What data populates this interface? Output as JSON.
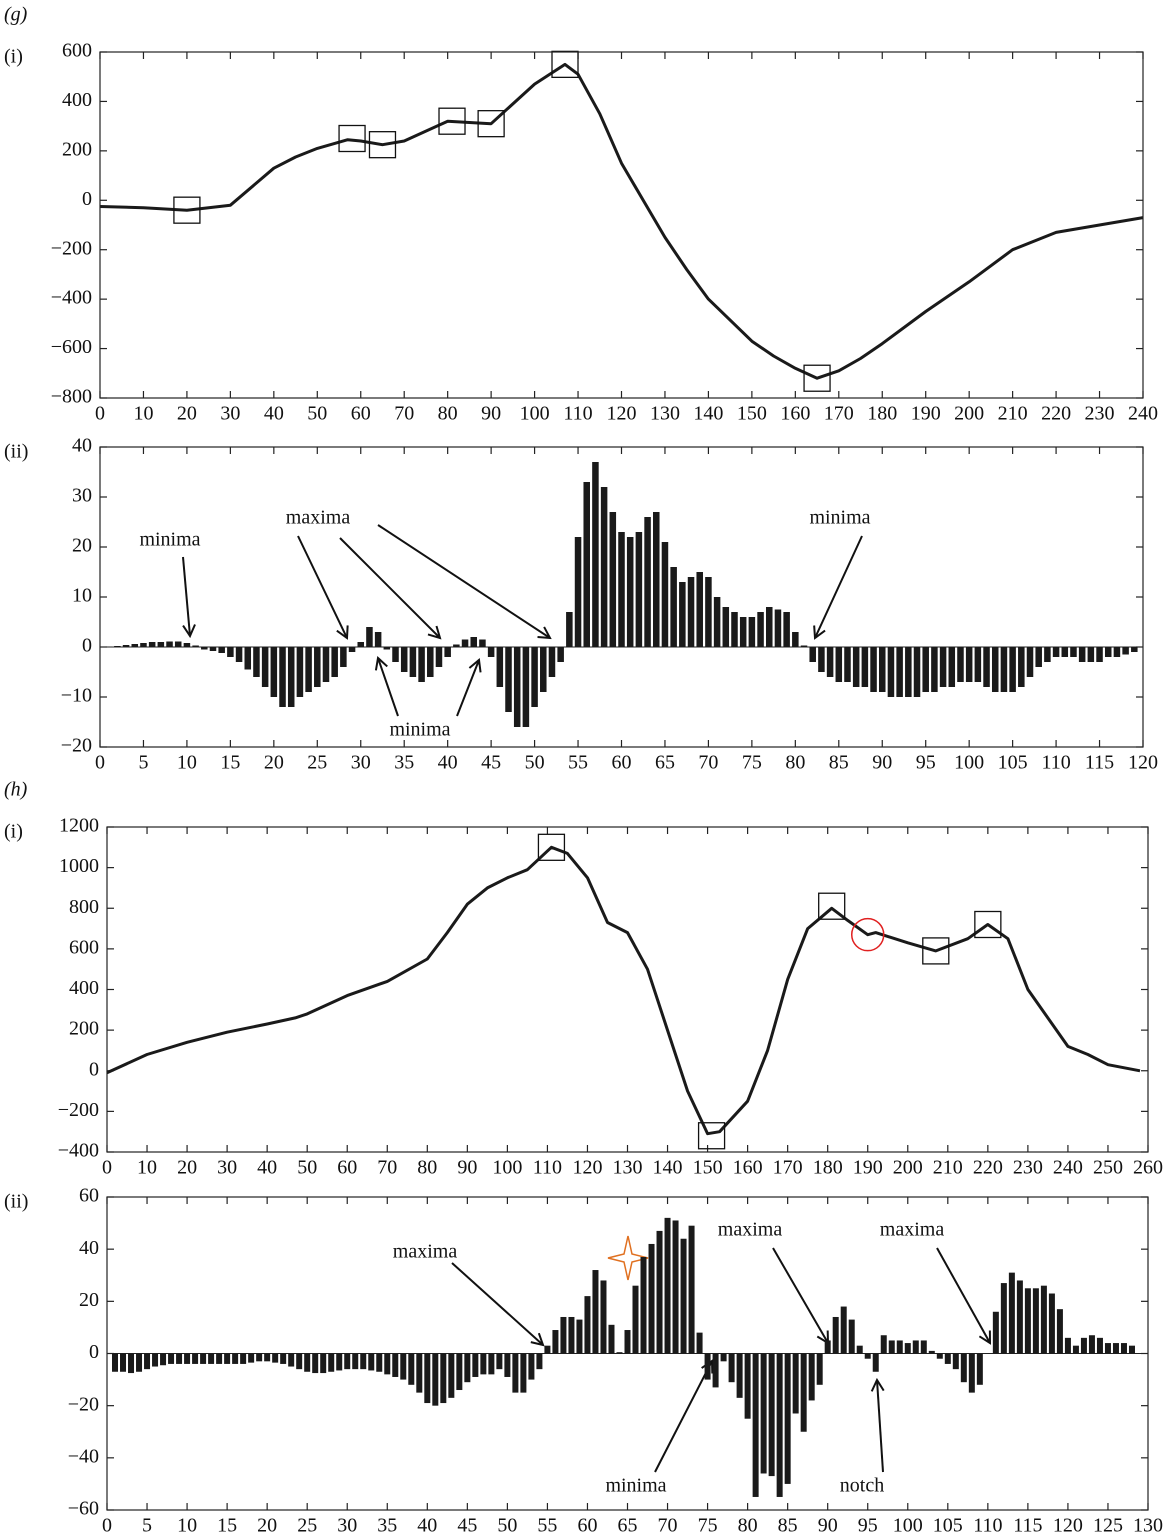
{
  "chart_data": [
    {
      "type": "line",
      "group_label": "(g)",
      "panel_label": "(i)",
      "color": "#1a1a1a",
      "x": [
        0,
        10,
        20,
        30,
        40,
        45,
        50,
        57,
        60,
        65,
        70,
        80,
        90,
        100,
        107,
        110,
        115,
        120,
        125,
        130,
        135,
        140,
        150,
        155,
        160,
        165,
        170,
        175,
        180,
        190,
        200,
        210,
        220,
        230,
        240
      ],
      "values": [
        -25,
        -30,
        -40,
        -20,
        130,
        175,
        210,
        245,
        240,
        225,
        240,
        320,
        310,
        470,
        550,
        510,
        350,
        150,
        0,
        -150,
        -280,
        -400,
        -570,
        -630,
        -680,
        -720,
        -690,
        -640,
        -580,
        -450,
        -330,
        -200,
        -130,
        -100,
        -70
      ],
      "xlim": [
        0,
        240
      ],
      "xticks": [
        0,
        10,
        20,
        30,
        40,
        50,
        60,
        70,
        80,
        90,
        100,
        110,
        120,
        130,
        140,
        150,
        160,
        170,
        180,
        190,
        200,
        210,
        220,
        230,
        240
      ],
      "ylim": [
        -800,
        600
      ],
      "yticks": [
        {
          "value": -800,
          "label": "−800"
        },
        {
          "value": -600,
          "label": "−600"
        },
        {
          "value": -400,
          "label": "−400"
        },
        {
          "value": -200,
          "label": "−200"
        },
        0,
        200,
        400,
        600
      ],
      "boxes": {
        "x": [
          20,
          58,
          65,
          81,
          90,
          107,
          165
        ],
        "y": [
          -40,
          250,
          225,
          320,
          310,
          550,
          -720
        ]
      }
    },
    {
      "type": "bar",
      "panel_label": "(ii)",
      "color": "#1a1a1a",
      "x": [
        1,
        2,
        3,
        4,
        5,
        6,
        7,
        8,
        9,
        10,
        11,
        12,
        13,
        14,
        15,
        16,
        17,
        18,
        19,
        20,
        21,
        22,
        23,
        24,
        25,
        26,
        27,
        28,
        29,
        30,
        31,
        32,
        33,
        34,
        35,
        36,
        37,
        38,
        39,
        40,
        41,
        42,
        43,
        44,
        45,
        46,
        47,
        48,
        49,
        50,
        51,
        52,
        53,
        54,
        55,
        56,
        57,
        58,
        59,
        60,
        61,
        62,
        63,
        64,
        65,
        66,
        67,
        68,
        69,
        70,
        71,
        72,
        73,
        74,
        75,
        76,
        77,
        78,
        79,
        80,
        81,
        82,
        83,
        84,
        85,
        86,
        87,
        88,
        89,
        90,
        91,
        92,
        93,
        94,
        95,
        96,
        97,
        98,
        99,
        100,
        101,
        102,
        103,
        104,
        105,
        106,
        107,
        108,
        109,
        110,
        111,
        112,
        113,
        114,
        115,
        116,
        117,
        118,
        119
      ],
      "values": [
        0.1,
        0.2,
        0.4,
        0.6,
        0.8,
        1,
        1,
        1.1,
        1.1,
        0.8,
        0.3,
        -0.5,
        -0.8,
        -1.2,
        -2,
        -3,
        -4.5,
        -6,
        -8,
        -10,
        -12,
        -12,
        -10,
        -9,
        -8,
        -7,
        -6,
        -4,
        -1,
        1,
        4,
        3,
        -0.5,
        -3,
        -5,
        -6,
        -7,
        -6,
        -4,
        -2,
        0.5,
        1.5,
        2,
        1.5,
        -2,
        -8,
        -13,
        -16,
        -16,
        -12,
        -9,
        -6,
        -3,
        7,
        22,
        33,
        37,
        32,
        27,
        23,
        22,
        23,
        26,
        27,
        21,
        16,
        13,
        14,
        15,
        14,
        10,
        8,
        7,
        6,
        6,
        7,
        8,
        7.5,
        7,
        3,
        0.3,
        -3,
        -5,
        -6,
        -7,
        -7,
        -8,
        -8,
        -9,
        -9,
        -10,
        -10,
        -10,
        -10,
        -9,
        -9,
        -8,
        -8,
        -7,
        -7,
        -7,
        -8,
        -9,
        -9,
        -9,
        -8,
        -6,
        -4,
        -3,
        -2,
        -2,
        -2,
        -3,
        -3,
        -3,
        -2,
        -2,
        -1.5,
        -1
      ],
      "xlim": [
        0,
        120
      ],
      "xticks": [
        0,
        5,
        10,
        15,
        20,
        25,
        30,
        35,
        40,
        45,
        50,
        55,
        60,
        65,
        70,
        75,
        80,
        85,
        90,
        95,
        100,
        105,
        110,
        115,
        120
      ],
      "ylim": [
        -20,
        40
      ],
      "yticks": [
        {
          "value": -20,
          "label": "−20"
        },
        {
          "value": -10,
          "label": "−10"
        },
        0,
        10,
        20,
        30,
        40
      ],
      "annotations": [
        "minima",
        "maxima",
        "minima",
        "minima"
      ]
    },
    {
      "type": "line",
      "group_label": "(h)",
      "panel_label": "(i)",
      "color": "#1a1a1a",
      "x": [
        0,
        10,
        20,
        30,
        40,
        47,
        50,
        60,
        70,
        80,
        85,
        90,
        95,
        100,
        105,
        111,
        115,
        120,
        125,
        130,
        135,
        140,
        145,
        150,
        153,
        160,
        165,
        170,
        175,
        181,
        185,
        190,
        192,
        200,
        207,
        215,
        220,
        225,
        230,
        240,
        245,
        250,
        258
      ],
      "values": [
        -10,
        80,
        140,
        190,
        230,
        260,
        280,
        370,
        440,
        550,
        680,
        820,
        900,
        950,
        990,
        1100,
        1070,
        950,
        730,
        680,
        500,
        200,
        -100,
        -310,
        -300,
        -150,
        100,
        450,
        700,
        800,
        740,
        670,
        680,
        630,
        590,
        650,
        720,
        650,
        400,
        120,
        80,
        30,
        0
      ],
      "xlim": [
        0,
        260
      ],
      "xticks": [
        0,
        10,
        20,
        30,
        40,
        50,
        60,
        70,
        80,
        90,
        100,
        110,
        120,
        130,
        140,
        150,
        160,
        170,
        180,
        190,
        200,
        210,
        220,
        230,
        240,
        250,
        260
      ],
      "ylim": [
        -400,
        1200
      ],
      "yticks": [
        {
          "value": -400,
          "label": "−400"
        },
        {
          "value": -200,
          "label": "−200"
        },
        0,
        200,
        400,
        600,
        800,
        1000,
        1200
      ],
      "boxes": {
        "x": [
          111,
          151,
          181,
          207,
          220
        ],
        "y": [
          1100,
          -320,
          810,
          590,
          720
        ]
      },
      "circle": {
        "x": 190,
        "y": 670,
        "color": "#e02020"
      }
    },
    {
      "type": "bar",
      "panel_label": "(ii)",
      "color": "#1a1a1a",
      "x": [
        1,
        2,
        3,
        4,
        5,
        6,
        7,
        8,
        9,
        10,
        11,
        12,
        13,
        14,
        15,
        16,
        17,
        18,
        19,
        20,
        21,
        22,
        23,
        24,
        25,
        26,
        27,
        28,
        29,
        30,
        31,
        32,
        33,
        34,
        35,
        36,
        37,
        38,
        39,
        40,
        41,
        42,
        43,
        44,
        45,
        46,
        47,
        48,
        49,
        50,
        51,
        52,
        53,
        54,
        55,
        56,
        57,
        58,
        59,
        60,
        61,
        62,
        63,
        64,
        65,
        66,
        67,
        68,
        69,
        70,
        71,
        72,
        73,
        74,
        75,
        76,
        77,
        78,
        79,
        80,
        81,
        82,
        83,
        84,
        85,
        86,
        87,
        88,
        89,
        90,
        91,
        92,
        93,
        94,
        95,
        96,
        97,
        98,
        99,
        100,
        101,
        102,
        103,
        104,
        105,
        106,
        107,
        108,
        109,
        110,
        111,
        112,
        113,
        114,
        115,
        116,
        117,
        118,
        119,
        120,
        121,
        122,
        123,
        124,
        125,
        126,
        127,
        128
      ],
      "values": [
        -7,
        -7,
        -7.5,
        -7,
        -6,
        -5,
        -4.5,
        -4,
        -4,
        -4,
        -4,
        -4,
        -4,
        -4,
        -4,
        -4,
        -4,
        -3.5,
        -3,
        -3,
        -3.5,
        -4,
        -5,
        -6,
        -7,
        -7.5,
        -7.5,
        -7,
        -6.5,
        -6,
        -6,
        -6,
        -6.5,
        -7,
        -8,
        -9,
        -10,
        -12,
        -15,
        -19,
        -20,
        -19,
        -17,
        -14,
        -11,
        -9,
        -8,
        -8,
        -6,
        -9,
        -15,
        -15,
        -10,
        -6,
        3,
        9,
        14,
        14,
        13,
        22,
        32,
        28,
        11,
        0.5,
        9,
        26,
        37,
        42,
        47,
        52,
        51,
        44,
        49,
        8,
        -10,
        -13,
        -3,
        -11,
        -17,
        -25,
        -55,
        -46,
        -47,
        -55,
        -50,
        -23,
        -30,
        -18,
        -12,
        5,
        14,
        18,
        13,
        3,
        -2,
        -7,
        7,
        5,
        5,
        4,
        5,
        5,
        1,
        -2,
        -4,
        -6,
        -11,
        -15,
        -12,
        0,
        16,
        27,
        31,
        28,
        25,
        25,
        26,
        23,
        17,
        6,
        3,
        6,
        7,
        6,
        4,
        4,
        4,
        3
      ],
      "xlim": [
        0,
        130
      ],
      "xticks": [
        0,
        5,
        10,
        15,
        20,
        25,
        30,
        35,
        40,
        45,
        50,
        55,
        60,
        65,
        70,
        75,
        80,
        85,
        90,
        95,
        100,
        105,
        110,
        115,
        120,
        125,
        130
      ],
      "ylim": [
        -60,
        60
      ],
      "yticks": [
        {
          "value": -60,
          "label": "−60"
        },
        {
          "value": -40,
          "label": "−40"
        },
        {
          "value": -20,
          "label": "−20"
        },
        0,
        20,
        40,
        60
      ],
      "annotations": [
        "maxima",
        "maxima",
        "maxima",
        "minima",
        "notch"
      ]
    }
  ]
}
